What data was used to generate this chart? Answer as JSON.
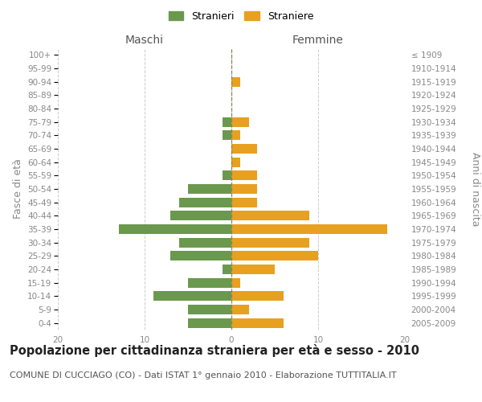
{
  "age_groups": [
    "0-4",
    "5-9",
    "10-14",
    "15-19",
    "20-24",
    "25-29",
    "30-34",
    "35-39",
    "40-44",
    "45-49",
    "50-54",
    "55-59",
    "60-64",
    "65-69",
    "70-74",
    "75-79",
    "80-84",
    "85-89",
    "90-94",
    "95-99",
    "100+"
  ],
  "birth_years": [
    "2005-2009",
    "2000-2004",
    "1995-1999",
    "1990-1994",
    "1985-1989",
    "1980-1984",
    "1975-1979",
    "1970-1974",
    "1965-1969",
    "1960-1964",
    "1955-1959",
    "1950-1954",
    "1945-1949",
    "1940-1944",
    "1935-1939",
    "1930-1934",
    "1925-1929",
    "1920-1924",
    "1915-1919",
    "1910-1914",
    "≤ 1909"
  ],
  "males": [
    5,
    5,
    9,
    5,
    1,
    7,
    6,
    13,
    7,
    6,
    5,
    1,
    0,
    0,
    1,
    1,
    0,
    0,
    0,
    0,
    0
  ],
  "females": [
    6,
    2,
    6,
    1,
    5,
    10,
    9,
    18,
    9,
    3,
    3,
    3,
    1,
    3,
    1,
    2,
    0,
    0,
    1,
    0,
    0
  ],
  "male_color": "#6a994e",
  "female_color": "#e8a020",
  "background_color": "#ffffff",
  "grid_color": "#cccccc",
  "xlim": 20,
  "title": "Popolazione per cittadinanza straniera per età e sesso - 2010",
  "subtitle": "COMUNE DI CUCCIAGO (CO) - Dati ISTAT 1° gennaio 2010 - Elaborazione TUTTITALIA.IT",
  "xlabel_left": "Maschi",
  "xlabel_right": "Femmine",
  "ylabel_left": "Fasce di età",
  "ylabel_right": "Anni di nascita",
  "legend_male": "Stranieri",
  "legend_female": "Straniere",
  "title_fontsize": 10.5,
  "subtitle_fontsize": 8,
  "axis_label_fontsize": 9,
  "tick_fontsize": 7.5
}
